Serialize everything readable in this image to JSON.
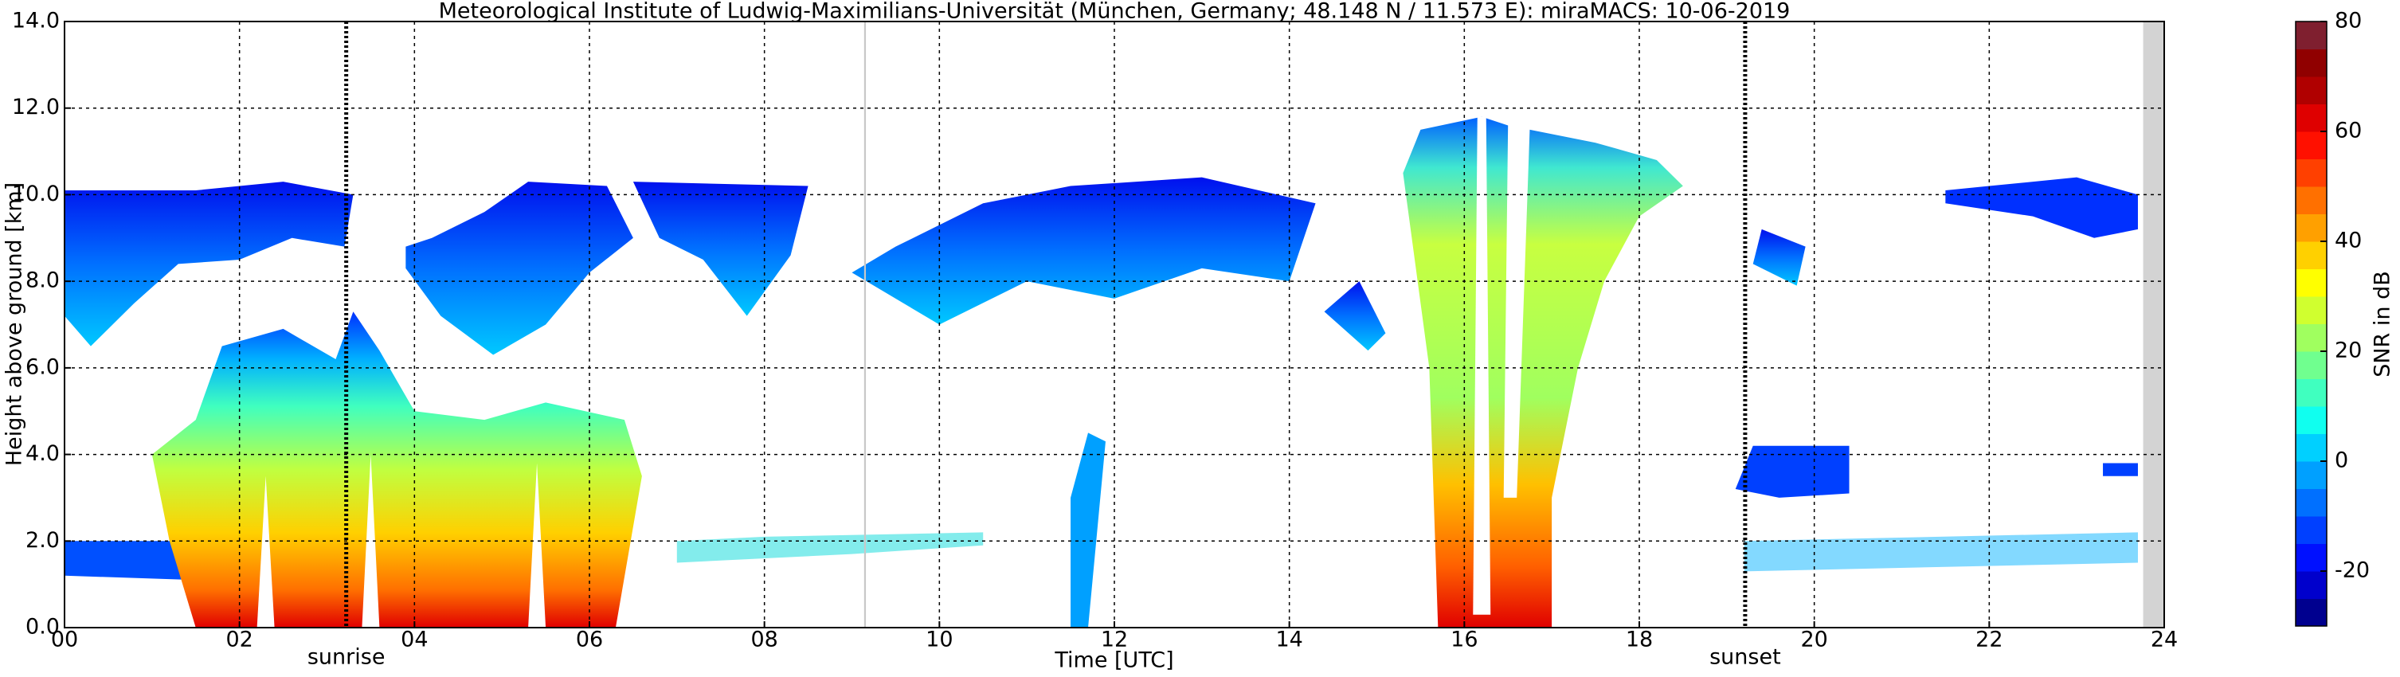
{
  "chart_data": {
    "type": "heatmap",
    "title": "Meteorological Institute of Ludwig-Maximilians-Universität (München, Germany; 48.148 N / 11.573 E):    miraMACS: 10-06-2019",
    "x_label": "Time [UTC]",
    "y_label": "Height above ground [km]",
    "colorbar_label": "SNR in dB",
    "xlim": [
      0,
      24
    ],
    "xticks": [
      {
        "value": 0,
        "label": "00"
      },
      {
        "value": 2,
        "label": "02"
      },
      {
        "value": 4,
        "label": "04"
      },
      {
        "value": 6,
        "label": "06"
      },
      {
        "value": 8,
        "label": "08"
      },
      10,
      12,
      14,
      16,
      18,
      20,
      22,
      24
    ],
    "ylim": [
      0,
      14
    ],
    "yticks": [
      {
        "value": 0,
        "label": "0.0"
      },
      {
        "value": 2,
        "label": "2.0"
      },
      {
        "value": 4,
        "label": "4.0"
      },
      {
        "value": 6,
        "label": "6.0"
      },
      {
        "value": 8,
        "label": "8.0"
      },
      {
        "value": 10,
        "label": "10.0"
      },
      {
        "value": 12,
        "label": "12.0"
      },
      {
        "value": 14,
        "label": "14.0"
      }
    ],
    "zlim": [
      -30,
      80
    ],
    "zticks": [
      -20,
      0,
      20,
      40,
      60,
      80
    ],
    "colorscale": [
      "#00008f",
      "#0000cc",
      "#0010ff",
      "#0040ff",
      "#0070ff",
      "#00a0ff",
      "#00d0ff",
      "#10ffef",
      "#40ffbf",
      "#70ff8f",
      "#a0ff5f",
      "#d0ff2f",
      "#ffff00",
      "#ffd000",
      "#ffa000",
      "#ff7000",
      "#ff4000",
      "#ff1000",
      "#df0000",
      "#b00000",
      "#900000",
      "#7f1f2f"
    ],
    "grid": true,
    "annotations": [
      {
        "text": "sunrise",
        "x": 3.22
      },
      {
        "text": "sunset",
        "x": 19.21
      }
    ]
  }
}
